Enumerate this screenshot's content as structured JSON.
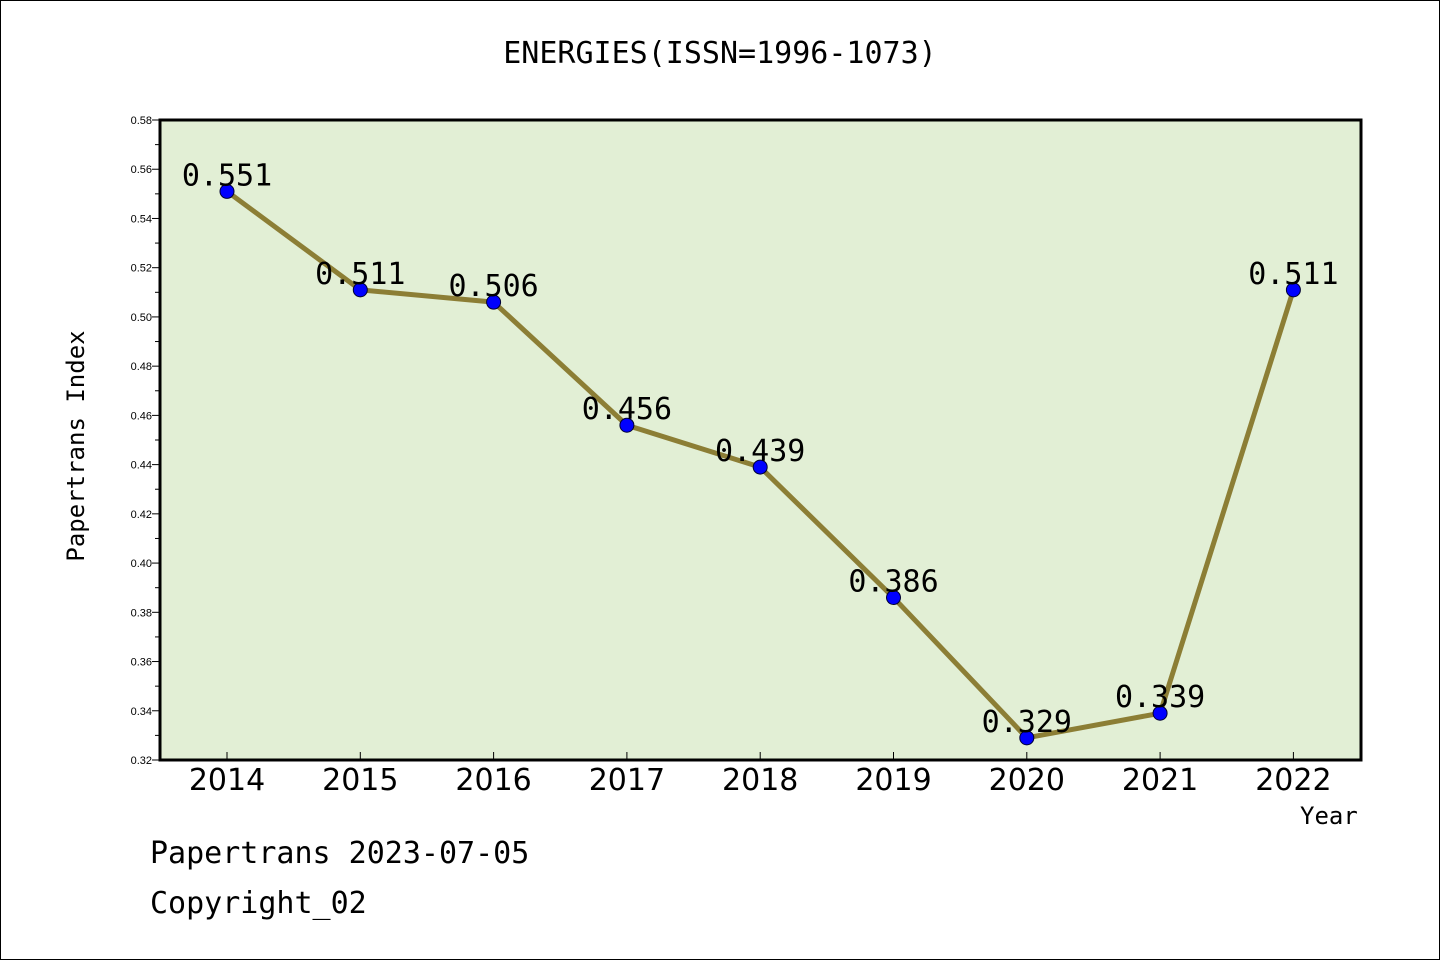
{
  "chart_data": {
    "type": "line",
    "title": "ENERGIES(ISSN=1996-1073)",
    "xlabel": "Year",
    "ylabel": "Papertrans Index",
    "categories": [
      "2014",
      "2015",
      "2016",
      "2017",
      "2018",
      "2019",
      "2020",
      "2021",
      "2022"
    ],
    "values": [
      0.551,
      0.511,
      0.506,
      0.456,
      0.439,
      0.386,
      0.329,
      0.339,
      0.511
    ],
    "data_labels": [
      "0.551",
      "0.511",
      "0.506",
      "0.456",
      "0.439",
      "0.386",
      "0.329",
      "0.339",
      "0.511"
    ],
    "ylim": [
      0.32,
      0.58
    ],
    "yticks": [
      "0.32",
      "0.34",
      "0.36",
      "0.38",
      "0.40",
      "0.42",
      "0.44",
      "0.46",
      "0.48",
      "0.50",
      "0.52",
      "0.54",
      "0.56",
      "0.58"
    ],
    "grid": false,
    "colors": {
      "plot_background": "#e2efd5",
      "line": "#8c7e35",
      "marker": "#0000ff"
    }
  },
  "footer": {
    "line1": "Papertrans 2023-07-05",
    "line2": "Copyright_02"
  }
}
